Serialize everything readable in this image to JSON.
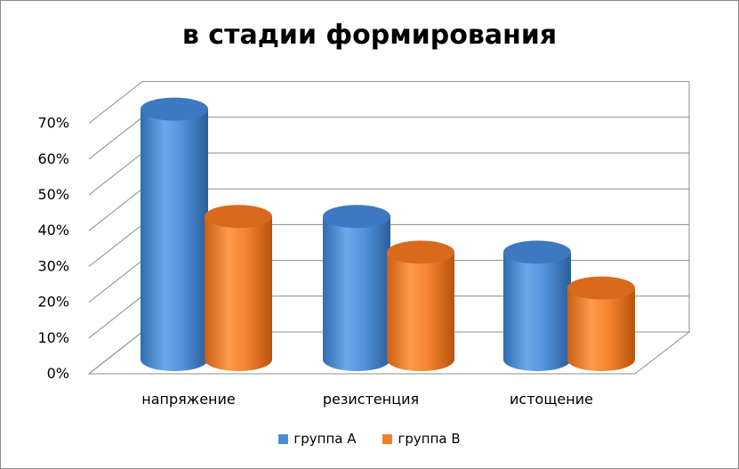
{
  "chart_data": {
    "type": "bar",
    "title": "в стадии формирования",
    "categories": [
      "напряжение",
      "резистенция",
      "истощение"
    ],
    "series": [
      {
        "name": "группа А",
        "values": [
          70,
          40,
          30
        ],
        "color": "#4a8fd6"
      },
      {
        "name": "группа В",
        "values": [
          40,
          30,
          20
        ],
        "color": "#f07f2a"
      }
    ],
    "y_ticks": [
      "0%",
      "10%",
      "20%",
      "30%",
      "40%",
      "50%",
      "60%",
      "70%"
    ],
    "ylim": [
      0,
      70
    ],
    "grid": true,
    "legend_position": "bottom",
    "style": "3d-cylinder"
  }
}
